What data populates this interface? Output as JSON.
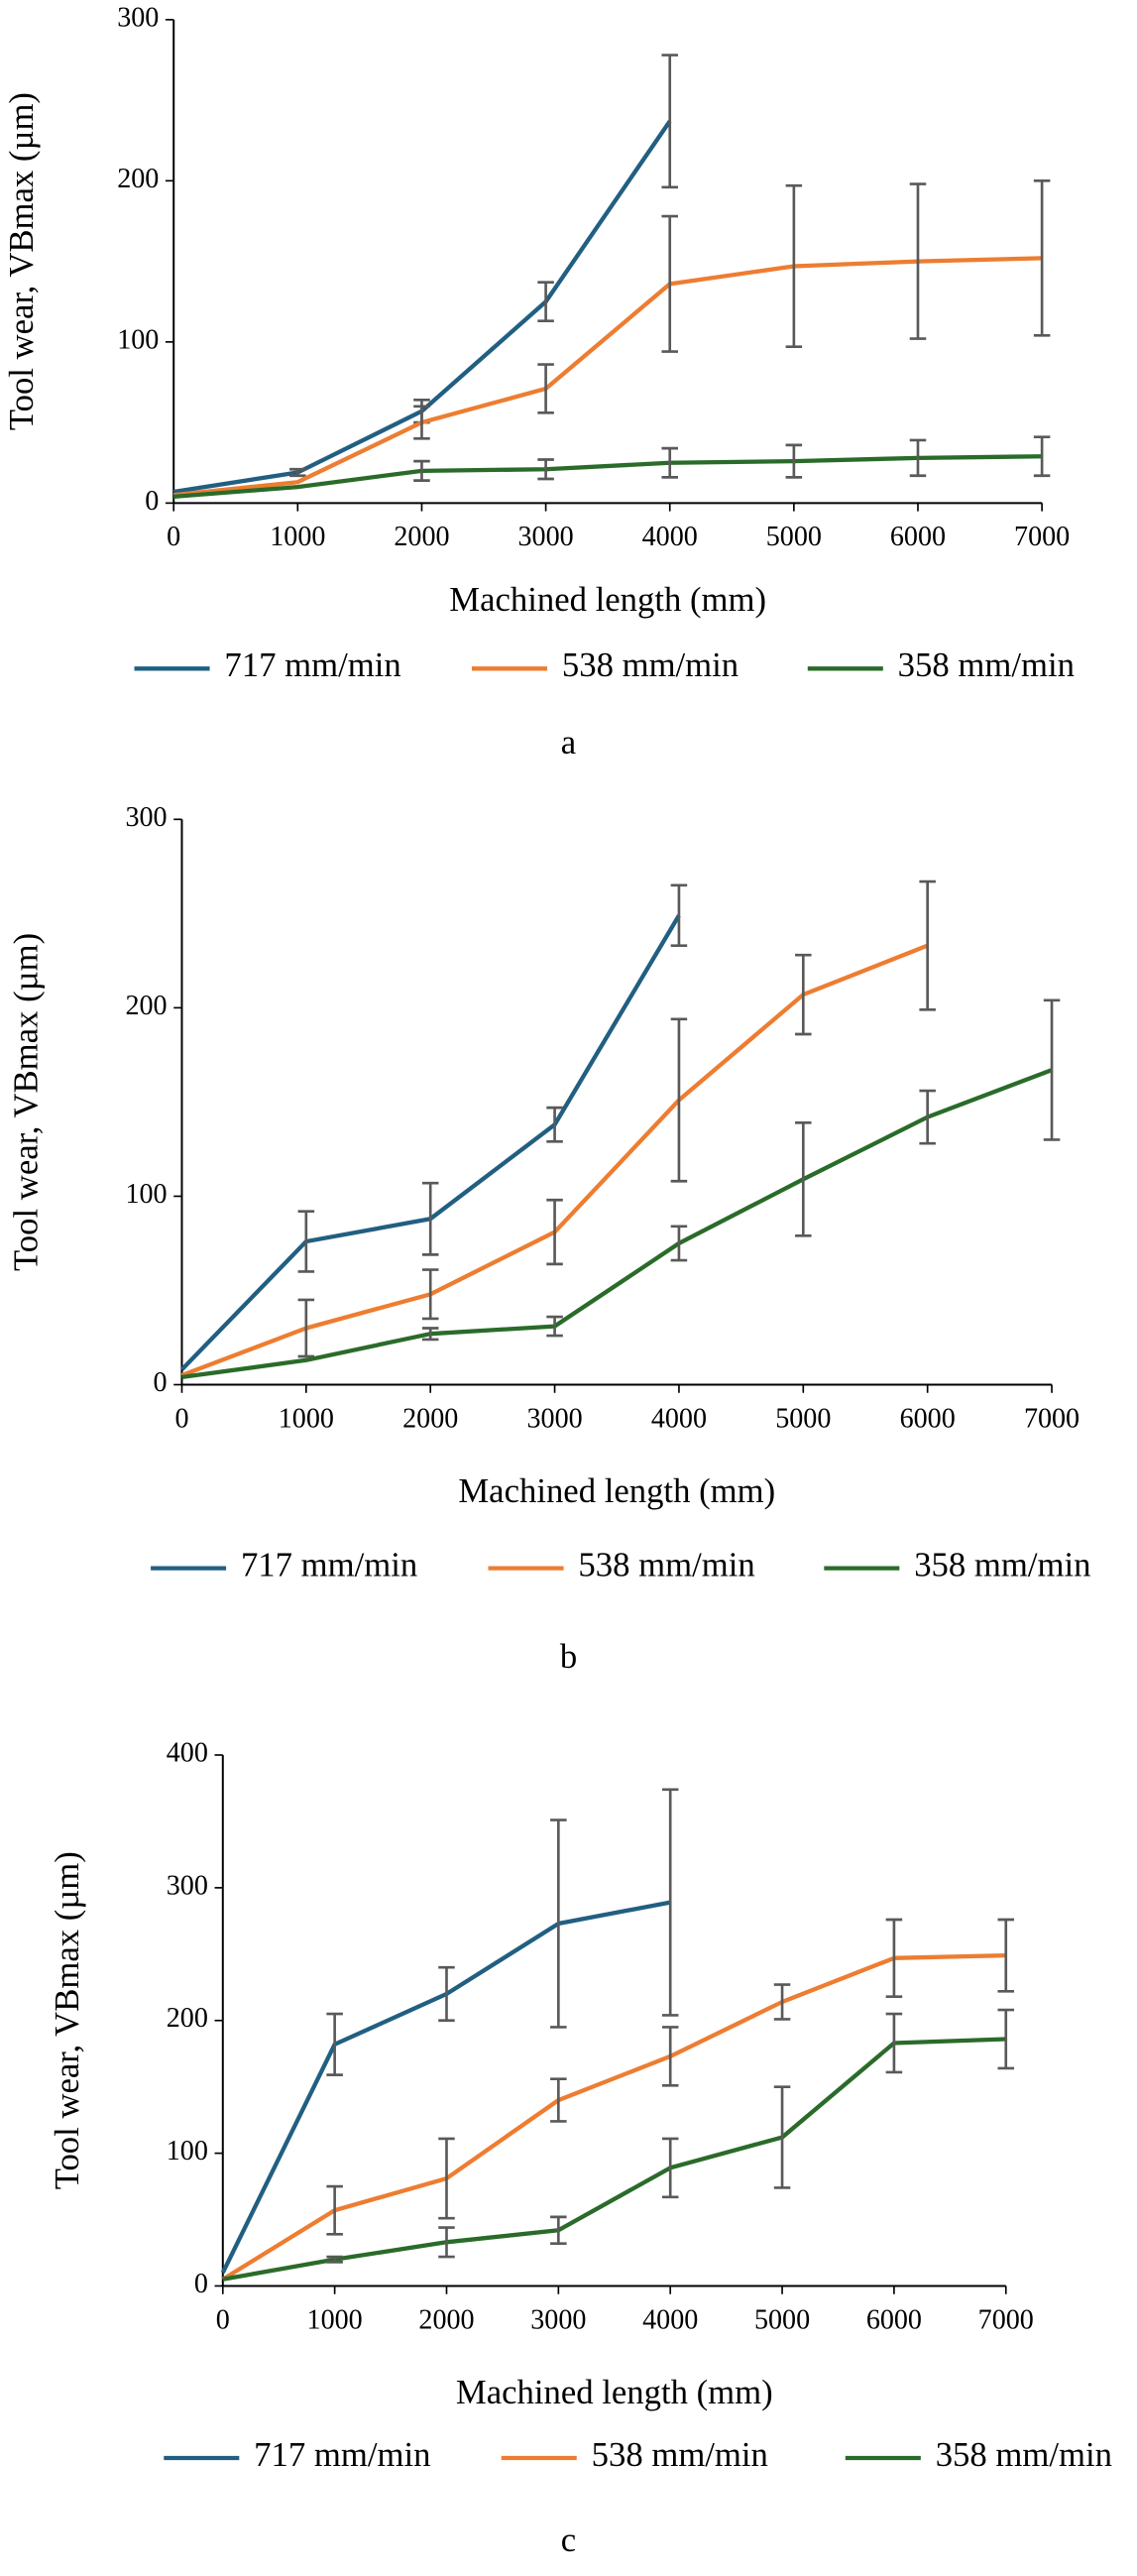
{
  "chart_data": [
    {
      "type": "line",
      "caption": "a",
      "x_label": "Machined length (mm)",
      "y_label": "Tool wear,  VBmax (µm)",
      "x": [
        0,
        1000,
        2000,
        3000,
        4000,
        5000,
        6000,
        7000
      ],
      "xlim": [
        0,
        7000
      ],
      "xticks": [
        0,
        1000,
        2000,
        3000,
        4000,
        5000,
        6000,
        7000
      ],
      "ylim": [
        0,
        300
      ],
      "yticks": [
        0,
        100,
        200,
        300
      ],
      "series": [
        {
          "name": "717 mm/min",
          "color": "#215f82",
          "values": [
            7,
            19,
            57,
            125,
            237,
            null,
            null,
            null
          ],
          "errors": [
            null,
            2,
            7,
            12,
            41,
            null,
            null,
            null
          ]
        },
        {
          "name": "538 mm/min",
          "color": "#ed7d31",
          "values": [
            5,
            13,
            50,
            71,
            136,
            147,
            150,
            152
          ],
          "errors": [
            null,
            null,
            10,
            15,
            42,
            50,
            48,
            48
          ]
        },
        {
          "name": "358 mm/min",
          "color": "#2a6b2a",
          "values": [
            4,
            10,
            20,
            21,
            25,
            26,
            28,
            29
          ],
          "errors": [
            null,
            null,
            6,
            6,
            9,
            10,
            11,
            12
          ]
        }
      ]
    },
    {
      "type": "line",
      "caption": "b",
      "x_label": "Machined length (mm)",
      "y_label": "Tool wear,  VBmax (µm)",
      "x": [
        0,
        1000,
        2000,
        3000,
        4000,
        5000,
        6000,
        7000
      ],
      "xlim": [
        0,
        7000
      ],
      "xticks": [
        0,
        1000,
        2000,
        3000,
        4000,
        5000,
        6000,
        7000
      ],
      "ylim": [
        0,
        300
      ],
      "yticks": [
        0,
        100,
        200,
        300
      ],
      "series": [
        {
          "name": "717 mm/min",
          "color": "#215f82",
          "values": [
            8,
            76,
            88,
            138,
            249,
            null,
            null,
            null
          ],
          "errors": [
            null,
            16,
            19,
            9,
            16,
            null,
            null,
            null
          ]
        },
        {
          "name": "538 mm/min",
          "color": "#ed7d31",
          "values": [
            5,
            30,
            48,
            81,
            151,
            207,
            233,
            null
          ],
          "errors": [
            null,
            15,
            13,
            17,
            43,
            21,
            34,
            null
          ]
        },
        {
          "name": "358 mm/min",
          "color": "#2a6b2a",
          "values": [
            4,
            13,
            27,
            31,
            75,
            109,
            142,
            167
          ],
          "errors": [
            null,
            null,
            3,
            5,
            9,
            30,
            14,
            37
          ]
        }
      ]
    },
    {
      "type": "line",
      "caption": "c",
      "x_label": "Machined length (mm)",
      "y_label": "Tool wear,  VBmax (µm)",
      "x": [
        0,
        1000,
        2000,
        3000,
        4000,
        5000,
        6000,
        7000
      ],
      "xlim": [
        0,
        7000
      ],
      "xticks": [
        0,
        1000,
        2000,
        3000,
        4000,
        5000,
        6000,
        7000
      ],
      "ylim": [
        0,
        400
      ],
      "yticks": [
        0,
        100,
        200,
        300,
        400
      ],
      "series": [
        {
          "name": "717 mm/min",
          "color": "#215f82",
          "values": [
            10,
            182,
            220,
            273,
            289,
            null,
            null,
            null
          ],
          "errors": [
            null,
            23,
            20,
            78,
            85,
            null,
            null,
            null
          ]
        },
        {
          "name": "538 mm/min",
          "color": "#ed7d31",
          "values": [
            5,
            57,
            81,
            140,
            173,
            214,
            247,
            249
          ],
          "errors": [
            null,
            18,
            30,
            16,
            22,
            13,
            29,
            27
          ]
        },
        {
          "name": "358 mm/min",
          "color": "#2a6b2a",
          "values": [
            5,
            20,
            33,
            42,
            89,
            112,
            183,
            186
          ],
          "errors": [
            null,
            2,
            11,
            10,
            22,
            38,
            22,
            22
          ]
        }
      ]
    }
  ]
}
